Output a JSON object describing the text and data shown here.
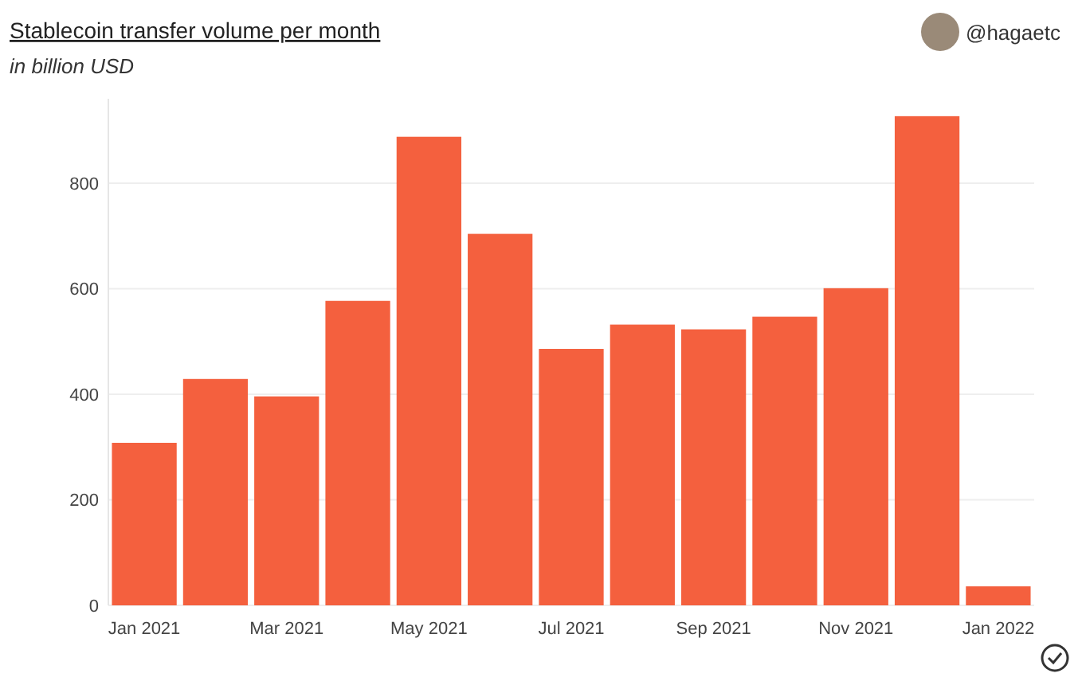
{
  "chart_data": {
    "type": "bar",
    "title": "Stablecoin transfer volume per month",
    "subtitle": "in billion USD",
    "annotations": [
      "@hagaetc"
    ],
    "categories": [
      "Jan 2021",
      null,
      "Mar 2021",
      null,
      "May 2021",
      null,
      "Jul 2021",
      null,
      "Sep 2021",
      null,
      "Nov 2021",
      null,
      "Jan 2022"
    ],
    "values": [
      308,
      429,
      396,
      577,
      888,
      704,
      486,
      532,
      523,
      547,
      601,
      927,
      36
    ],
    "color": "#f4603e",
    "ylim": [
      0,
      960
    ],
    "yticks": [
      0,
      200,
      400,
      600,
      800
    ],
    "grid": "y"
  }
}
